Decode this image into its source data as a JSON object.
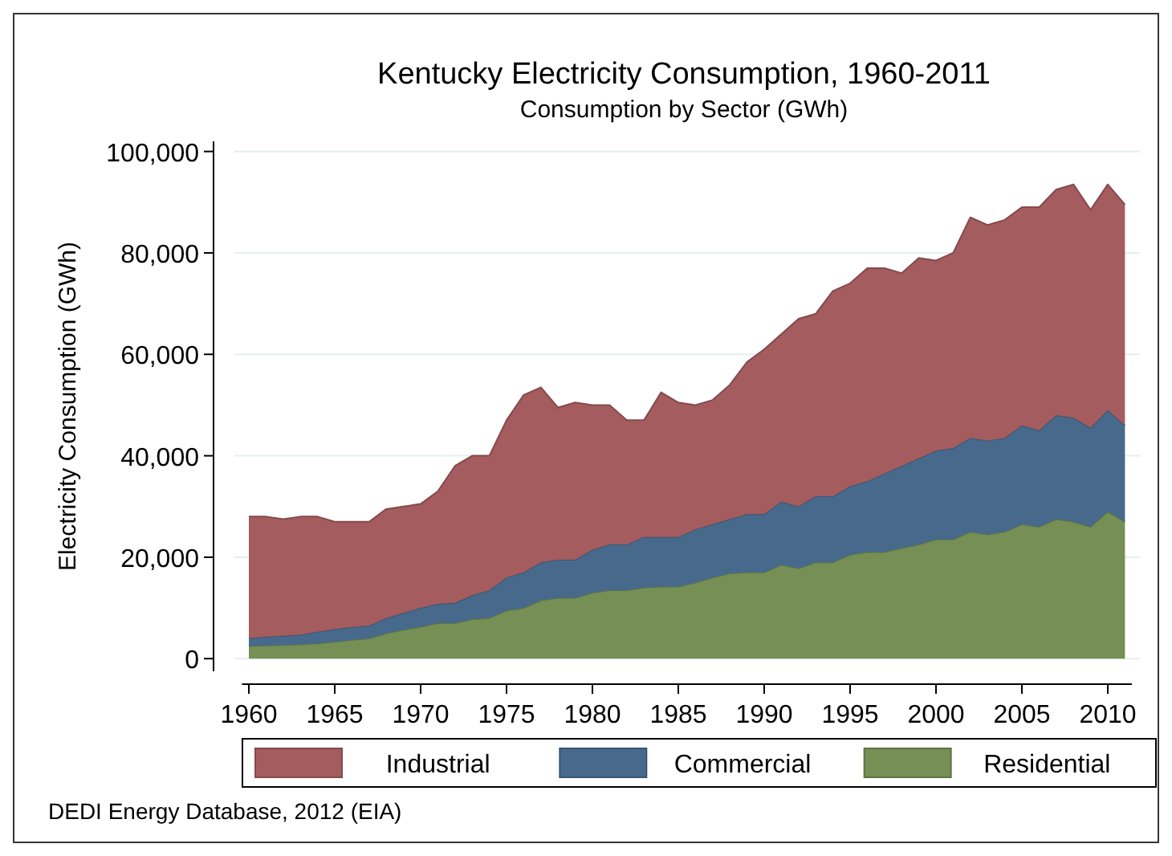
{
  "chart_data": {
    "type": "area",
    "stacked": true,
    "title": "Kentucky Electricity Consumption, 1960-2011",
    "subtitle": "Consumption by Sector (GWh)",
    "ylabel": "Electricity Consumption (GWh)",
    "x": [
      1960,
      1961,
      1962,
      1963,
      1964,
      1965,
      1966,
      1967,
      1968,
      1969,
      1970,
      1971,
      1972,
      1973,
      1974,
      1975,
      1976,
      1977,
      1978,
      1979,
      1980,
      1981,
      1982,
      1983,
      1984,
      1985,
      1986,
      1987,
      1988,
      1989,
      1990,
      1991,
      1992,
      1993,
      1994,
      1995,
      1996,
      1997,
      1998,
      1999,
      2000,
      2001,
      2002,
      2003,
      2004,
      2005,
      2006,
      2007,
      2008,
      2009,
      2010,
      2011
    ],
    "series": [
      {
        "name": "Residential",
        "color": "#768f55",
        "values": [
          2500,
          2600,
          2700,
          2800,
          3000,
          3300,
          3700,
          4000,
          5000,
          5700,
          6300,
          7000,
          7000,
          7800,
          8000,
          9500,
          10000,
          11500,
          12000,
          12000,
          13000,
          13500,
          13500,
          14000,
          14200,
          14200,
          15000,
          16000,
          16800,
          17000,
          17000,
          18500,
          17800,
          19000,
          19000,
          20500,
          21000,
          21000,
          21800,
          22500,
          23500,
          23500,
          25000,
          24500,
          25000,
          26500,
          26000,
          27500,
          27000,
          26000,
          29000,
          27000
        ]
      },
      {
        "name": "Commercial",
        "color": "#476a8c",
        "values": [
          1500,
          1700,
          1800,
          1900,
          2300,
          2500,
          2500,
          2500,
          3000,
          3300,
          3700,
          3800,
          4000,
          4700,
          5500,
          6500,
          7000,
          7500,
          7500,
          7500,
          8500,
          9000,
          9000,
          10000,
          9800,
          9800,
          10500,
          10500,
          10700,
          11500,
          11500,
          12500,
          12200,
          13000,
          13000,
          13500,
          14000,
          15500,
          16200,
          17000,
          17500,
          18000,
          18500,
          18500,
          18500,
          19500,
          19000,
          20500,
          20500,
          19500,
          20000,
          19000
        ]
      },
      {
        "name": "Industrial",
        "color": "#a45c5f",
        "values": [
          24000,
          23700,
          23000,
          23300,
          22700,
          21200,
          20800,
          20500,
          21500,
          21000,
          20500,
          22200,
          27000,
          27500,
          26500,
          31000,
          35000,
          34500,
          30000,
          31000,
          28500,
          27500,
          24500,
          23000,
          28500,
          26500,
          24500,
          24500,
          26500,
          30000,
          32500,
          33000,
          37000,
          36000,
          40500,
          40000,
          42000,
          40500,
          38000,
          39500,
          37500,
          38500,
          43500,
          42500,
          43000,
          43000,
          44000,
          44500,
          46000,
          43000,
          44500,
          43500
        ]
      }
    ],
    "xlim": [
      1959.6,
      2011.4
    ],
    "xticks": [
      1960,
      1965,
      1970,
      1975,
      1980,
      1985,
      1990,
      1995,
      2000,
      2005,
      2010
    ],
    "ylim": [
      -2500,
      102000
    ],
    "yticks": [
      {
        "value": 0,
        "label": "0"
      },
      {
        "value": 20000,
        "label": "20,000"
      },
      {
        "value": 40000,
        "label": "40,000"
      },
      {
        "value": 60000,
        "label": "60,000"
      },
      {
        "value": 80000,
        "label": "80,000"
      },
      {
        "value": 100000,
        "label": "100,000"
      }
    ],
    "grid": "y",
    "legend": "bottom",
    "annotations": [
      "DEDI Energy Database, 2012  (EIA)"
    ]
  }
}
